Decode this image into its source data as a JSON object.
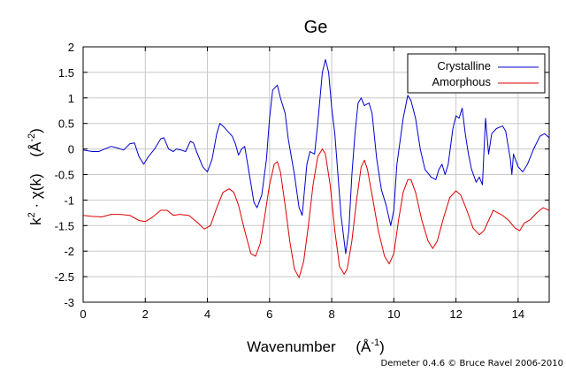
{
  "chart_data": {
    "type": "line",
    "title": "Ge",
    "xlabel": "Wavenumber",
    "xlabel_units": "(Å",
    "xlabel_units_sup": "-1",
    "xlabel_units_close": ")",
    "ylabel_parts": {
      "k": "k",
      "k_sup": "2",
      "dot": " · χ(k)",
      "units": "(Å",
      "units_sup": "-2",
      "units_close": ")"
    },
    "xlim": [
      0,
      15
    ],
    "ylim": [
      -3,
      2
    ],
    "xticks": [
      0,
      2,
      4,
      6,
      8,
      10,
      12,
      14
    ],
    "yticks": [
      -3,
      -2.5,
      -2,
      -1.5,
      -1,
      -0.5,
      0,
      0.5,
      1,
      1.5,
      2
    ],
    "grid": true,
    "legend_position": "top-right",
    "credit": "Demeter 0.4.6 © Bruce Ravel 2006-2010",
    "series": [
      {
        "name": "Crystalline",
        "color": "#0000cc",
        "points": [
          [
            0,
            -0.02
          ],
          [
            0.3,
            -0.05
          ],
          [
            0.5,
            -0.05
          ],
          [
            0.7,
            0.0
          ],
          [
            0.9,
            0.05
          ],
          [
            1.1,
            0.02
          ],
          [
            1.3,
            -0.02
          ],
          [
            1.5,
            0.1
          ],
          [
            1.65,
            0.12
          ],
          [
            1.8,
            -0.15
          ],
          [
            1.95,
            -0.3
          ],
          [
            2.1,
            -0.15
          ],
          [
            2.3,
            0.0
          ],
          [
            2.5,
            0.2
          ],
          [
            2.6,
            0.22
          ],
          [
            2.75,
            0.0
          ],
          [
            2.9,
            -0.05
          ],
          [
            3.0,
            0.0
          ],
          [
            3.15,
            -0.02
          ],
          [
            3.3,
            -0.05
          ],
          [
            3.45,
            0.15
          ],
          [
            3.55,
            0.12
          ],
          [
            3.65,
            -0.05
          ],
          [
            3.85,
            -0.35
          ],
          [
            4.0,
            -0.45
          ],
          [
            4.15,
            -0.2
          ],
          [
            4.3,
            0.3
          ],
          [
            4.4,
            0.5
          ],
          [
            4.5,
            0.45
          ],
          [
            4.65,
            0.35
          ],
          [
            4.8,
            0.25
          ],
          [
            4.9,
            0.1
          ],
          [
            5.0,
            -0.12
          ],
          [
            5.1,
            0.0
          ],
          [
            5.2,
            0.05
          ],
          [
            5.35,
            -0.5
          ],
          [
            5.5,
            -1.05
          ],
          [
            5.6,
            -1.15
          ],
          [
            5.75,
            -0.9
          ],
          [
            5.9,
            -0.2
          ],
          [
            6.0,
            0.6
          ],
          [
            6.1,
            1.15
          ],
          [
            6.25,
            1.25
          ],
          [
            6.35,
            1.0
          ],
          [
            6.5,
            0.7
          ],
          [
            6.6,
            0.2
          ],
          [
            6.8,
            -0.5
          ],
          [
            6.95,
            -1.15
          ],
          [
            7.05,
            -1.3
          ],
          [
            7.2,
            -0.3
          ],
          [
            7.3,
            -0.05
          ],
          [
            7.45,
            -0.1
          ],
          [
            7.55,
            0.5
          ],
          [
            7.7,
            1.5
          ],
          [
            7.8,
            1.75
          ],
          [
            7.9,
            1.5
          ],
          [
            8.0,
            0.8
          ],
          [
            8.1,
            0.3
          ],
          [
            8.2,
            -0.5
          ],
          [
            8.3,
            -1.3
          ],
          [
            8.45,
            -2.05
          ],
          [
            8.55,
            -1.6
          ],
          [
            8.65,
            -0.5
          ],
          [
            8.75,
            0.3
          ],
          [
            8.85,
            0.9
          ],
          [
            8.95,
            1.0
          ],
          [
            9.05,
            0.85
          ],
          [
            9.2,
            0.9
          ],
          [
            9.3,
            0.7
          ],
          [
            9.45,
            -0.2
          ],
          [
            9.6,
            -0.8
          ],
          [
            9.75,
            -1.1
          ],
          [
            9.9,
            -1.5
          ],
          [
            10.0,
            -1.2
          ],
          [
            10.1,
            -0.3
          ],
          [
            10.3,
            0.6
          ],
          [
            10.45,
            1.05
          ],
          [
            10.55,
            0.95
          ],
          [
            10.7,
            0.6
          ],
          [
            10.85,
            0.0
          ],
          [
            11.0,
            -0.4
          ],
          [
            11.2,
            -0.55
          ],
          [
            11.35,
            -0.6
          ],
          [
            11.45,
            -0.4
          ],
          [
            11.55,
            -0.3
          ],
          [
            11.65,
            -0.5
          ],
          [
            11.75,
            -0.3
          ],
          [
            11.9,
            0.4
          ],
          [
            12.0,
            0.65
          ],
          [
            12.1,
            0.6
          ],
          [
            12.2,
            0.8
          ],
          [
            12.3,
            0.3
          ],
          [
            12.4,
            -0.1
          ],
          [
            12.5,
            -0.4
          ],
          [
            12.65,
            -0.65
          ],
          [
            12.75,
            -0.55
          ],
          [
            12.85,
            -0.7
          ],
          [
            12.95,
            0.6
          ],
          [
            13.05,
            -0.1
          ],
          [
            13.15,
            0.3
          ],
          [
            13.3,
            0.4
          ],
          [
            13.5,
            0.45
          ],
          [
            13.6,
            0.35
          ],
          [
            13.75,
            -0.2
          ],
          [
            13.8,
            -0.5
          ],
          [
            13.85,
            -0.1
          ],
          [
            14.0,
            -0.35
          ],
          [
            14.15,
            -0.45
          ],
          [
            14.3,
            -0.3
          ],
          [
            14.5,
            0.0
          ],
          [
            14.7,
            0.25
          ],
          [
            14.85,
            0.3
          ],
          [
            15.0,
            0.22
          ]
        ]
      },
      {
        "name": "Amorphous",
        "color": "#dd0000",
        "points": [
          [
            0,
            -1.3
          ],
          [
            0.3,
            -1.32
          ],
          [
            0.6,
            -1.33
          ],
          [
            0.9,
            -1.28
          ],
          [
            1.2,
            -1.28
          ],
          [
            1.5,
            -1.3
          ],
          [
            1.8,
            -1.4
          ],
          [
            2.0,
            -1.42
          ],
          [
            2.2,
            -1.35
          ],
          [
            2.5,
            -1.2
          ],
          [
            2.7,
            -1.2
          ],
          [
            2.9,
            -1.3
          ],
          [
            3.1,
            -1.28
          ],
          [
            3.4,
            -1.3
          ],
          [
            3.7,
            -1.45
          ],
          [
            3.9,
            -1.57
          ],
          [
            4.1,
            -1.5
          ],
          [
            4.3,
            -1.15
          ],
          [
            4.5,
            -0.85
          ],
          [
            4.7,
            -0.78
          ],
          [
            4.85,
            -0.85
          ],
          [
            5.0,
            -1.1
          ],
          [
            5.2,
            -1.6
          ],
          [
            5.4,
            -2.05
          ],
          [
            5.55,
            -2.1
          ],
          [
            5.7,
            -1.85
          ],
          [
            5.85,
            -1.3
          ],
          [
            6.0,
            -0.7
          ],
          [
            6.15,
            -0.3
          ],
          [
            6.25,
            -0.25
          ],
          [
            6.35,
            -0.45
          ],
          [
            6.5,
            -1.1
          ],
          [
            6.65,
            -1.8
          ],
          [
            6.8,
            -2.35
          ],
          [
            6.95,
            -2.52
          ],
          [
            7.1,
            -2.2
          ],
          [
            7.25,
            -1.5
          ],
          [
            7.4,
            -0.7
          ],
          [
            7.55,
            -0.15
          ],
          [
            7.7,
            0.0
          ],
          [
            7.8,
            -0.1
          ],
          [
            7.95,
            -0.7
          ],
          [
            8.1,
            -1.6
          ],
          [
            8.25,
            -2.3
          ],
          [
            8.4,
            -2.45
          ],
          [
            8.5,
            -2.35
          ],
          [
            8.65,
            -1.8
          ],
          [
            8.8,
            -1.0
          ],
          [
            8.95,
            -0.35
          ],
          [
            9.05,
            -0.22
          ],
          [
            9.15,
            -0.4
          ],
          [
            9.3,
            -0.9
          ],
          [
            9.5,
            -1.6
          ],
          [
            9.7,
            -2.1
          ],
          [
            9.85,
            -2.25
          ],
          [
            10.0,
            -2.05
          ],
          [
            10.15,
            -1.4
          ],
          [
            10.3,
            -0.85
          ],
          [
            10.45,
            -0.6
          ],
          [
            10.55,
            -0.6
          ],
          [
            10.7,
            -0.85
          ],
          [
            10.9,
            -1.4
          ],
          [
            11.1,
            -1.8
          ],
          [
            11.25,
            -1.95
          ],
          [
            11.4,
            -1.8
          ],
          [
            11.6,
            -1.35
          ],
          [
            11.8,
            -0.95
          ],
          [
            12.0,
            -0.82
          ],
          [
            12.15,
            -0.9
          ],
          [
            12.35,
            -1.2
          ],
          [
            12.55,
            -1.55
          ],
          [
            12.75,
            -1.68
          ],
          [
            12.9,
            -1.6
          ],
          [
            13.05,
            -1.4
          ],
          [
            13.2,
            -1.2
          ],
          [
            13.35,
            -1.25
          ],
          [
            13.5,
            -1.3
          ],
          [
            13.7,
            -1.4
          ],
          [
            13.9,
            -1.55
          ],
          [
            14.05,
            -1.6
          ],
          [
            14.2,
            -1.45
          ],
          [
            14.4,
            -1.38
          ],
          [
            14.6,
            -1.25
          ],
          [
            14.8,
            -1.15
          ],
          [
            15.0,
            -1.2
          ]
        ]
      }
    ]
  }
}
